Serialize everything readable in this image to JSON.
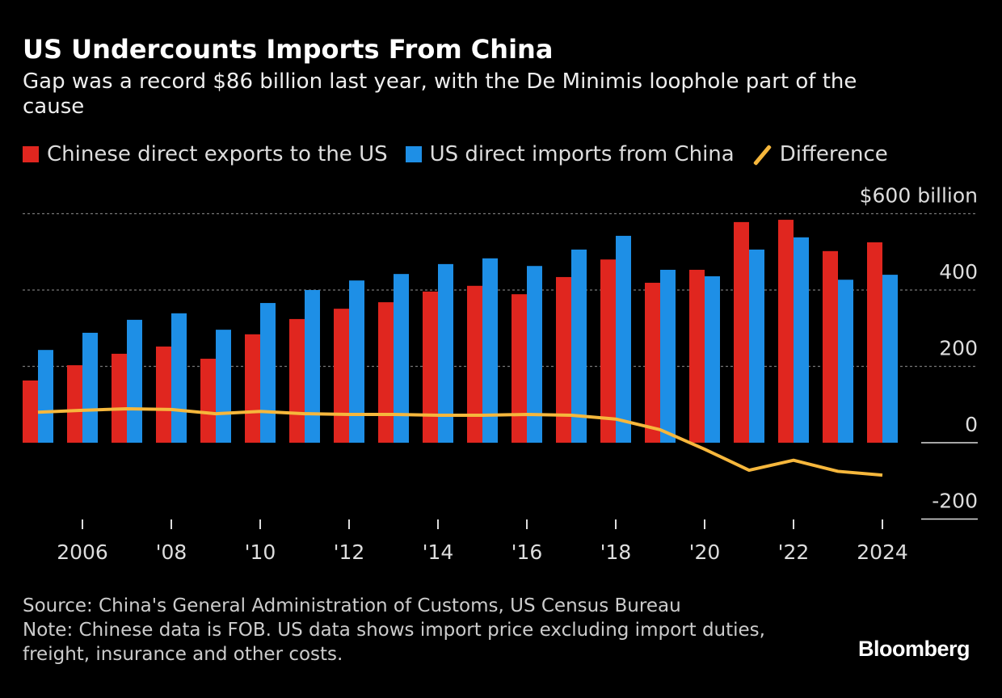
{
  "title": "US Undercounts Imports From China",
  "subtitle": "Gap was a record $86 billion last year, with the De Minimis loophole part of the cause",
  "source": "Source: China's General Administration of Customs, US Census Bureau",
  "note": "Note: Chinese data is FOB. US data shows import price excluding import duties, freight, insurance and other costs.",
  "logo": "Bloomberg",
  "chart_data": {
    "type": "bar",
    "x": [
      2005,
      2006,
      2007,
      2008,
      2009,
      2010,
      2011,
      2012,
      2013,
      2014,
      2015,
      2016,
      2017,
      2018,
      2019,
      2020,
      2021,
      2022,
      2023,
      2024
    ],
    "series": [
      {
        "name": "Chinese direct exports to the US",
        "type": "bar",
        "color": "#e0261f",
        "values": [
          163,
          203,
          233,
          252,
          220,
          284,
          324,
          351,
          368,
          396,
          411,
          389,
          434,
          480,
          419,
          453,
          578,
          584,
          502,
          525
        ]
      },
      {
        "name": "US direct imports from China",
        "type": "bar",
        "color": "#1e8fe6",
        "values": [
          243,
          288,
          322,
          339,
          296,
          366,
          400,
          425,
          442,
          468,
          483,
          463,
          506,
          542,
          453,
          436,
          506,
          538,
          427,
          440
        ]
      },
      {
        "name": "Difference",
        "type": "line",
        "color": "#f6b73c",
        "values": [
          80,
          85,
          89,
          87,
          76,
          82,
          76,
          74,
          74,
          72,
          72,
          74,
          72,
          62,
          34,
          -17,
          -72,
          -46,
          -75,
          -85
        ]
      }
    ],
    "y_ticks": [
      {
        "value": 600,
        "label": "$600 billion"
      },
      {
        "value": 400,
        "label": "400"
      },
      {
        "value": 200,
        "label": "200"
      },
      {
        "value": 0,
        "label": "0"
      },
      {
        "value": -200,
        "label": "-200"
      }
    ],
    "x_ticks": [
      {
        "value": 2006,
        "label": "2006"
      },
      {
        "value": 2008,
        "label": "'08"
      },
      {
        "value": 2010,
        "label": "'10"
      },
      {
        "value": 2012,
        "label": "'12"
      },
      {
        "value": 2014,
        "label": "'14"
      },
      {
        "value": 2016,
        "label": "'16"
      },
      {
        "value": 2018,
        "label": "'18"
      },
      {
        "value": 2020,
        "label": "'20"
      },
      {
        "value": 2022,
        "label": "'22"
      },
      {
        "value": 2024,
        "label": "2024"
      }
    ],
    "ylim": [
      -200,
      600
    ],
    "grid": true,
    "legend": "top-left"
  }
}
